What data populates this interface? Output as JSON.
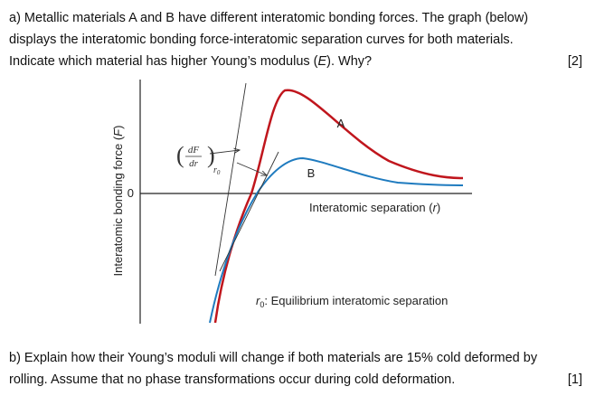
{
  "question_a": {
    "lines": [
      [
        "a) Metallic materials A and B have different interatomic bonding forces. The graph (below)"
      ],
      [
        "displays the interatomic bonding force-interatomic separation curves for both materials."
      ],
      [
        "Indicate which material has higher Young’s modulus (",
        "E",
        "). Why?"
      ]
    ],
    "marks": "[2]"
  },
  "figure": {
    "y_axis_label": [
      "Interatomic bonding force (",
      "F",
      ")"
    ],
    "zero_label": "0",
    "x_axis_label": [
      "Interatomic separation (",
      "r",
      ")"
    ],
    "curve_a_label": "A",
    "curve_b_label": "B",
    "slope_label": {
      "numerator": "dF",
      "denominator": "dr",
      "subscript": "r",
      "subscript_index": "0"
    },
    "legend_note": [
      "r",
      "0",
      ": Equilibrium interatomic separation"
    ]
  },
  "question_b": {
    "lines": [
      "b) Explain how their Young’s moduli will change if both materials are 15% cold deformed by",
      "rolling. Assume that no phase transformations occur during cold deformation."
    ],
    "marks": "[1]"
  }
}
